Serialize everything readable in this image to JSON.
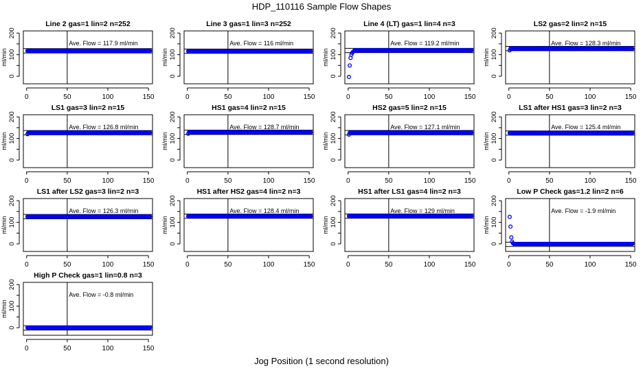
{
  "chart_data": {
    "type": "scatter",
    "title": "HDP_110116  Sample Flow Shapes",
    "xlabel": "Jog Position (1 second resolution)",
    "ylabel": "ml/min",
    "xlim": [
      -4,
      155
    ],
    "ylim": [
      -35,
      210
    ],
    "xticks": [
      0,
      50,
      100,
      150
    ],
    "yticks": [
      0,
      100,
      200
    ],
    "vline_x": 50,
    "band_halfwidth": 10,
    "point_color": "#0000ff",
    "x_range": [
      1,
      152
    ],
    "panels": [
      {
        "title": "Line 2 gas=1 lin=2 n=252",
        "ave_label": "Ave. Flow =  117.9  ml/min",
        "ave": 117.9,
        "initial": [],
        "steady": 117.9
      },
      {
        "title": "Line 3 gas=1 lin=3 n=252",
        "ave_label": "Ave. Flow =  116  ml/min",
        "ave": 116,
        "initial": [],
        "steady": 116
      },
      {
        "title": "Line 4 (LT) gas=1 lin=4 n=3",
        "ave_label": "Ave. Flow =  119.2  ml/min",
        "ave": 119.2,
        "initial": [
          -3,
          50,
          85,
          100,
          108,
          113,
          116
        ],
        "steady": 120
      },
      {
        "title": "LS2 gas=2 lin=2 n=15",
        "ave_label": "Ave. Flow =  128.3  ml/min",
        "ave": 128.3,
        "initial": [
          120
        ],
        "steady": 128.3
      },
      {
        "title": "LS1 gas=3 lin=2 n=15",
        "ave_label": "Ave. Flow =  126.8  ml/min",
        "ave": 126.8,
        "initial": [
          120
        ],
        "steady": 126.8
      },
      {
        "title": "HS1 gas=4 lin=2 n=15",
        "ave_label": "Ave. Flow =  128.7  ml/min",
        "ave": 128.7,
        "initial": [
          122
        ],
        "steady": 128.7
      },
      {
        "title": "HS2 gas=5 lin=2 n=15",
        "ave_label": "Ave. Flow =  127.1  ml/min",
        "ave": 127.1,
        "initial": [
          118
        ],
        "steady": 127.1
      },
      {
        "title": "LS1 after HS1 gas=3 lin=2 n=3",
        "ave_label": "Ave. Flow =  125.4  ml/min",
        "ave": 125.4,
        "initial": [],
        "steady": 125.4
      },
      {
        "title": "LS1 after LS2 gas=3 lin=2 n=3",
        "ave_label": "Ave. Flow =  126.3  ml/min",
        "ave": 126.3,
        "initial": [],
        "steady": 126.3
      },
      {
        "title": "HS1 after HS2 gas=4 lin=2 n=3",
        "ave_label": "Ave. Flow =  128.4  ml/min",
        "ave": 128.4,
        "initial": [],
        "steady": 128.4
      },
      {
        "title": "HS1 after LS1 gas=4 lin=2 n=3",
        "ave_label": "Ave. Flow =  129  ml/min",
        "ave": 129,
        "initial": [],
        "steady": 129
      },
      {
        "title": "Low P Check gas=1.2 lin=2 n=6",
        "ave_label": "Ave. Flow =  -1.9  ml/min",
        "ave": -1.9,
        "initial": [
          125,
          80,
          30,
          10,
          3
        ],
        "steady": 0
      },
      {
        "title": "High P Check gas=1 lin=0.8 n=3",
        "ave_label": "Ave. Flow =  -0.8  ml/min",
        "ave": -0.8,
        "initial": [],
        "steady": 0
      }
    ]
  }
}
